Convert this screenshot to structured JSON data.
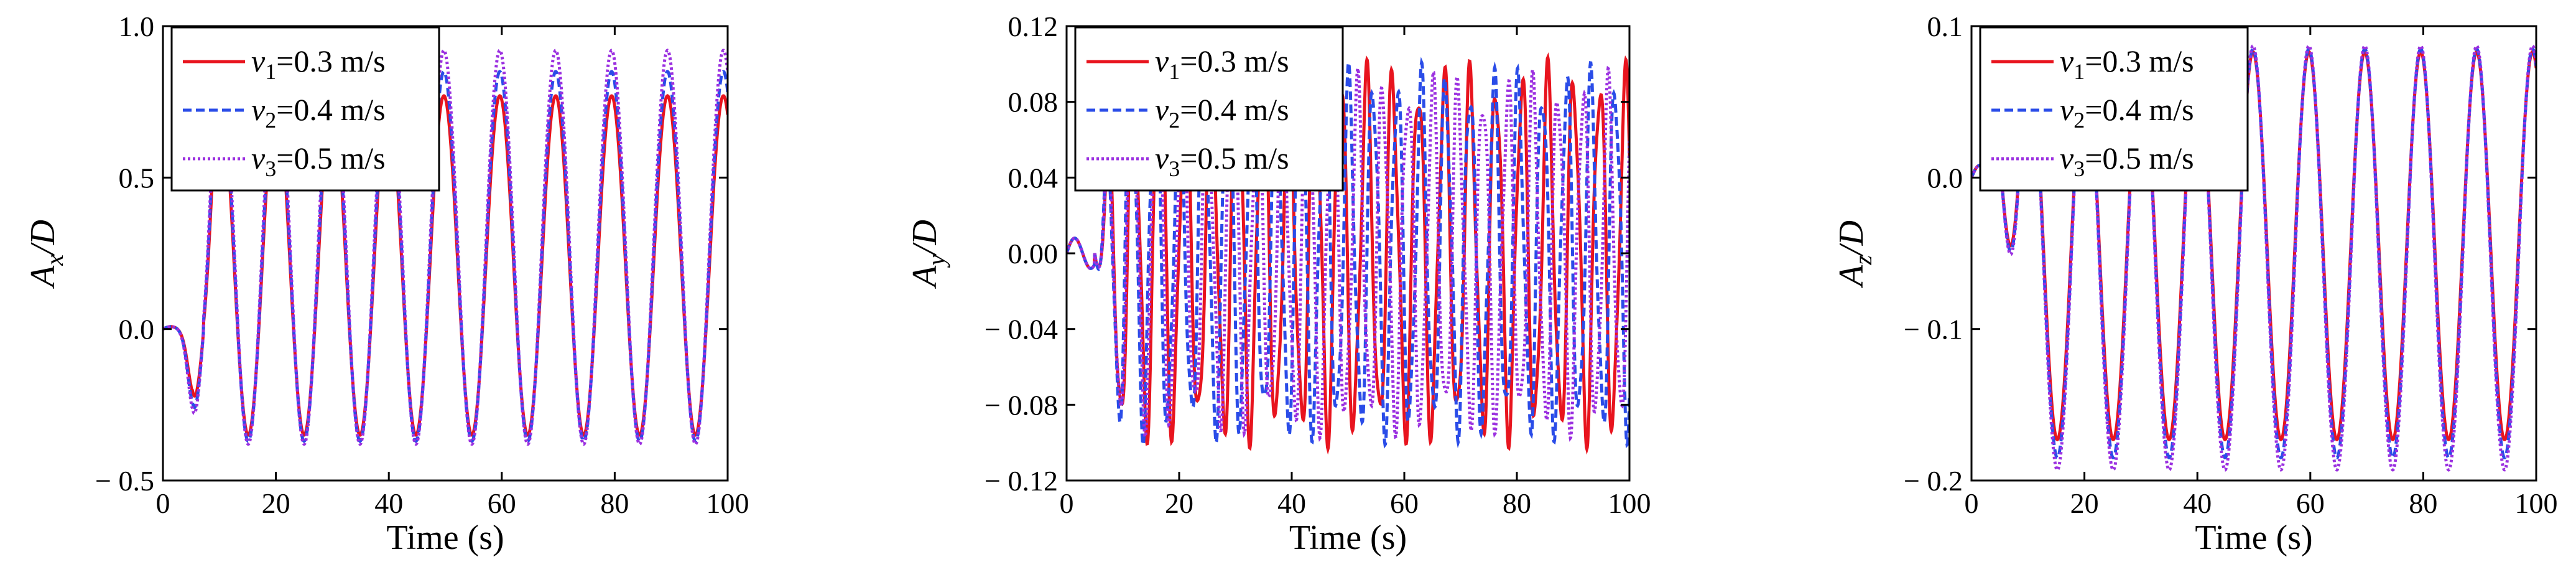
{
  "chart_data": [
    {
      "type": "line",
      "title": "",
      "xlabel": "Time (s)",
      "ylabel_main": "A",
      "ylabel_sub": "x",
      "ylabel_tail": "/D",
      "xlim": [
        0,
        100
      ],
      "ylim": [
        -0.5,
        1.0
      ],
      "xticks": [
        "0",
        "20",
        "40",
        "60",
        "80",
        "100"
      ],
      "xtick_values": [
        0,
        20,
        40,
        60,
        80,
        100
      ],
      "yticks": [
        "− 0.5",
        "0.0",
        "0.5",
        "1.0"
      ],
      "ytick_values": [
        -0.5,
        0.0,
        0.5,
        1.0
      ],
      "grid": false,
      "legend_position": "top-left",
      "series": [
        {
          "label_var": "v",
          "label_sub": "1",
          "label_value": "=0.3 m/s",
          "color": "#e8141e",
          "dash": "solid",
          "amplitude": 0.56,
          "midline": 0.21,
          "period": 9.9,
          "phase": 5.2,
          "transient_min": -0.21,
          "transient_t": 5.5
        },
        {
          "label_var": "v",
          "label_sub": "2",
          "label_value": "=0.4 m/s",
          "color": "#2a4ce8",
          "dash": "dashed",
          "amplitude": 0.61,
          "midline": 0.24,
          "period": 9.9,
          "phase": 5.2,
          "transient_min": -0.25,
          "transient_t": 5.5
        },
        {
          "label_var": "v",
          "label_sub": "3",
          "label_value": "=0.5 m/s",
          "color": "#9b30e0",
          "dash": "dotted",
          "amplitude": 0.65,
          "midline": 0.27,
          "period": 9.9,
          "phase": 5.2,
          "transient_min": -0.27,
          "transient_t": 5.5
        }
      ]
    },
    {
      "type": "line",
      "title": "",
      "xlabel": "Time (s)",
      "ylabel_main": "A",
      "ylabel_sub": "y",
      "ylabel_tail": "/D",
      "xlim": [
        0,
        100
      ],
      "ylim": [
        -0.12,
        0.12
      ],
      "xticks": [
        "0",
        "20",
        "40",
        "60",
        "80",
        "100"
      ],
      "xtick_values": [
        0,
        20,
        40,
        60,
        80,
        100
      ],
      "yticks": [
        "− 0.12",
        "− 0.08",
        "− 0.04",
        "0.00",
        "0.04",
        "0.08",
        "0.12"
      ],
      "ytick_values": [
        -0.12,
        -0.08,
        -0.04,
        0.0,
        0.04,
        0.08,
        0.12
      ],
      "grid": false,
      "legend_position": "top-left",
      "series": [
        {
          "label_var": "v",
          "label_sub": "1",
          "label_value": "=0.3 m/s",
          "color": "#e8141e",
          "dash": "solid",
          "amplitude": 0.09,
          "midline": 0.0,
          "period": 4.6,
          "phase": 5.0
        },
        {
          "label_var": "v",
          "label_sub": "2",
          "label_value": "=0.4 m/s",
          "color": "#2a4ce8",
          "dash": "dashed",
          "amplitude": 0.088,
          "midline": 0.0,
          "period": 4.3,
          "phase": 5.0
        },
        {
          "label_var": "v",
          "label_sub": "3",
          "label_value": "=0.5 m/s",
          "color": "#9b30e0",
          "dash": "dotted",
          "amplitude": 0.085,
          "midline": 0.0,
          "period": 4.45,
          "phase": 5.0
        }
      ]
    },
    {
      "type": "line",
      "title": "",
      "xlabel": "Time (s)",
      "ylabel_main": "A",
      "ylabel_sub": "z",
      "ylabel_tail": "/D",
      "xlim": [
        0,
        100
      ],
      "ylim": [
        -0.2,
        0.1
      ],
      "xticks": [
        "0",
        "20",
        "40",
        "60",
        "80",
        "100"
      ],
      "xtick_values": [
        0,
        20,
        40,
        60,
        80,
        100
      ],
      "yticks": [
        "− 0.2",
        "− 0.1",
        "0.0",
        "0.1"
      ],
      "ytick_values": [
        -0.2,
        -0.1,
        0.0,
        0.1
      ],
      "grid": false,
      "legend_position": "top-left",
      "series": [
        {
          "label_var": "v",
          "label_sub": "1",
          "label_value": "=0.3 m/s",
          "color": "#e8141e",
          "dash": "solid",
          "amplitude": 0.128,
          "midline": -0.045,
          "period": 9.9,
          "phase": 5.3
        },
        {
          "label_var": "v",
          "label_sub": "2",
          "label_value": "=0.4 m/s",
          "color": "#2a4ce8",
          "dash": "dashed",
          "amplitude": 0.135,
          "midline": -0.05,
          "period": 9.9,
          "phase": 5.3
        },
        {
          "label_var": "v",
          "label_sub": "3",
          "label_value": "=0.5 m/s",
          "color": "#9b30e0",
          "dash": "dotted",
          "amplitude": 0.14,
          "midline": -0.053,
          "period": 9.9,
          "phase": 5.3
        }
      ]
    }
  ]
}
